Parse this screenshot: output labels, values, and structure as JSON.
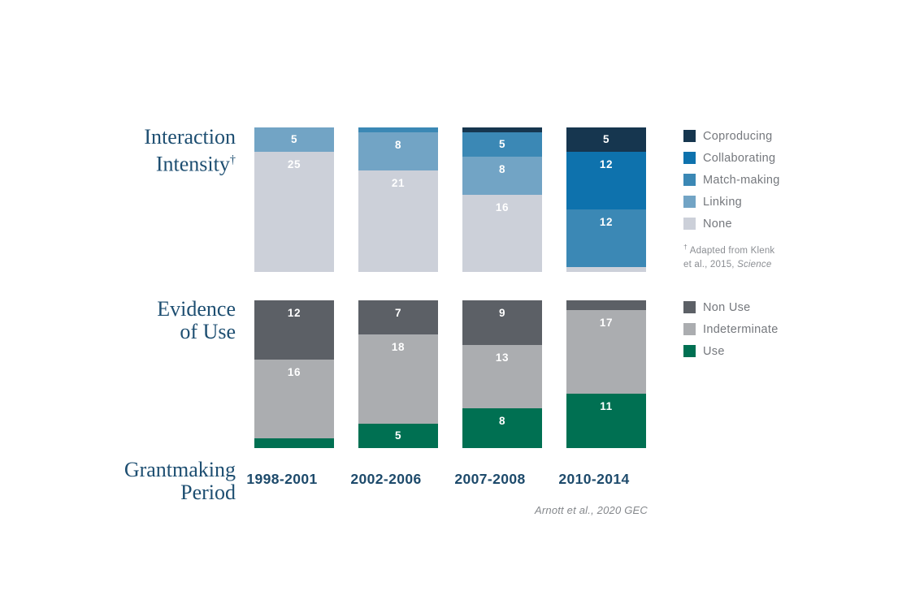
{
  "titles": {
    "interaction": {
      "line1": "Interaction",
      "line2": "Intensity",
      "sup": "†"
    },
    "evidence": {
      "line1": "Evidence",
      "line2": "of Use"
    },
    "axis": {
      "line1": "Grantmaking",
      "line2": "Period"
    }
  },
  "footnote": {
    "dagger": "†",
    "line1": "Adapted from Klenk",
    "line2": "et al., 2015, ",
    "line2_italic": "Science"
  },
  "attribution": "Arnott et al., 2020 GEC",
  "value_label_color": "#ffffff",
  "title_color": "#1d4e71",
  "axis_label_color": "#1d4a6b",
  "chart_data": [
    {
      "id": "interaction_intensity",
      "type": "bar",
      "subtype": "stacked-vertical",
      "title": "Interaction Intensity†",
      "categories": [
        "1998-2001",
        "2002-2006",
        "2007-2008",
        "2010-2014"
      ],
      "total_per_bar": 30,
      "legend_position": "right",
      "series": [
        {
          "name": "Coproducing",
          "color": "#16364f",
          "values": [
            0,
            0,
            1,
            5
          ]
        },
        {
          "name": "Collaborating",
          "color": "#0e72ad",
          "values": [
            0,
            0,
            0,
            12
          ]
        },
        {
          "name": "Match-making",
          "color": "#3b88b5",
          "values": [
            0,
            1,
            5,
            12
          ]
        },
        {
          "name": "Linking",
          "color": "#72a4c5",
          "values": [
            5,
            8,
            8,
            0
          ]
        },
        {
          "name": "None",
          "color": "#ccd0d9",
          "values": [
            25,
            21,
            16,
            1
          ]
        }
      ],
      "visible_value_labels": [
        [
          5,
          25
        ],
        [
          8,
          21
        ],
        [
          5,
          8,
          16
        ],
        [
          5,
          12,
          12
        ]
      ]
    },
    {
      "id": "evidence_of_use",
      "type": "bar",
      "subtype": "stacked-vertical",
      "title": "Evidence of Use",
      "categories": [
        "1998-2001",
        "2002-2006",
        "2007-2008",
        "2010-2014"
      ],
      "total_per_bar": 30,
      "legend_position": "right",
      "series": [
        {
          "name": "Non Use",
          "color": "#5c6066",
          "values": [
            12,
            7,
            9,
            2
          ]
        },
        {
          "name": "Indeterminate",
          "color": "#abadb0",
          "values": [
            16,
            18,
            13,
            17
          ]
        },
        {
          "name": "Use",
          "color": "#007052",
          "values": [
            2,
            5,
            8,
            11
          ]
        }
      ],
      "visible_value_labels": [
        [
          12,
          16
        ],
        [
          7,
          18,
          5
        ],
        [
          9,
          13,
          8
        ],
        [
          17,
          11
        ]
      ]
    }
  ]
}
